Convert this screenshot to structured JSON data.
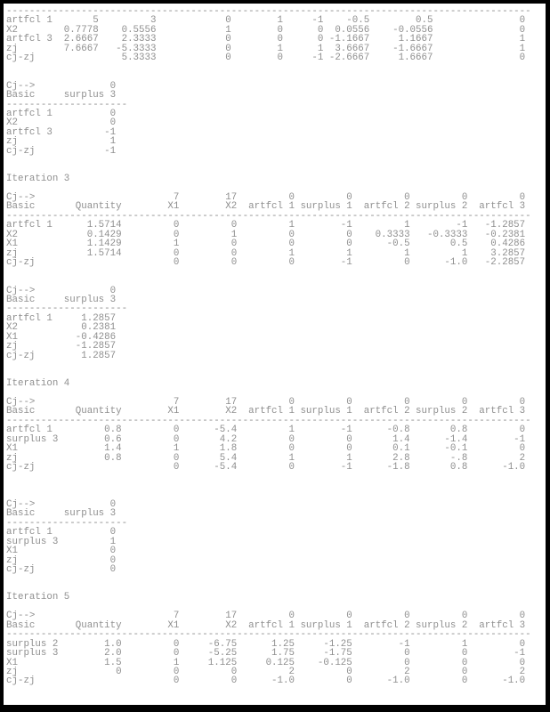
{
  "page": {
    "background": "#ffffff",
    "frame_color": "#000000",
    "text_color": "#8f8f8f"
  },
  "header": {
    "cj_label": "Cj-->",
    "basic_label": "Basic",
    "quantity_label": "Quantity",
    "cj_values": [
      "7",
      "17",
      "0",
      "0",
      "0",
      "0",
      "0"
    ],
    "columns": [
      "X1",
      "X2",
      "artfcl 1",
      "surplus 1",
      "artfcl 2",
      "surplus 2",
      "artfcl 3"
    ],
    "sub_cj_value": "0",
    "sub_column": "surplus 3"
  },
  "dash": {
    "char": "-",
    "main_count": 91,
    "sub_count": 21
  },
  "blocks": [
    {
      "type": "partial_main",
      "name": "tableau-continuation",
      "gap_after": 2,
      "rows": [
        {
          "label": "artfcl 1",
          "values": [
            "5",
            "3",
            "0",
            "1",
            "-1",
            "-0.5",
            "0.5",
            "0"
          ]
        },
        {
          "label": "X2",
          "values": [
            "0.7778",
            "0.5556",
            "1",
            "0",
            "0",
            "0.0556",
            "-0.0556",
            "0"
          ]
        },
        {
          "label": "artfcl 3",
          "values": [
            "2.6667",
            "2.3333",
            "0",
            "0",
            "0",
            "-1.1667",
            "1.1667",
            "1"
          ]
        },
        {
          "label": "zj",
          "values": [
            "7.6667",
            "-5.3333",
            "0",
            "1",
            "1",
            "3.6667",
            "-1.6667",
            "1"
          ]
        },
        {
          "label": "cj-zj",
          "values": [
            "",
            "5.3333",
            "0",
            "0",
            "-1",
            "-2.6667",
            "1.6667",
            "0"
          ]
        }
      ]
    },
    {
      "type": "sub",
      "name": "surplus3-column-table",
      "gap_after": 2,
      "rows": [
        {
          "label": "artfcl 1",
          "value": "0"
        },
        {
          "label": "X2",
          "value": "0"
        },
        {
          "label": "artfcl 3",
          "value": "-1"
        },
        {
          "label": "zj",
          "value": "1"
        },
        {
          "label": "cj-zj",
          "value": "-1"
        }
      ]
    },
    {
      "type": "heading",
      "name": "iteration-heading",
      "text": "Iteration 3",
      "gap_after": 1
    },
    {
      "type": "main",
      "name": "simplex-tableau",
      "gap_after": 2,
      "rows": [
        {
          "label": "artfcl 1",
          "values": [
            "1.5714",
            "0",
            "0",
            "1",
            "-1",
            "1",
            "-1",
            "-1.2857"
          ]
        },
        {
          "label": "X2",
          "values": [
            "0.1429",
            "0",
            "1",
            "0",
            "0",
            "0.3333",
            "-0.3333",
            "-0.2381"
          ]
        },
        {
          "label": "X1",
          "values": [
            "1.1429",
            "1",
            "0",
            "0",
            "0",
            "-0.5",
            "0.5",
            "0.4286"
          ]
        },
        {
          "label": "zj",
          "values": [
            "1.5714",
            "0",
            "0",
            "1",
            "1",
            "1",
            "1",
            "3.2857"
          ]
        },
        {
          "label": "cj-zj",
          "values": [
            "",
            "0",
            "0",
            "0",
            "-1",
            "0",
            "-1.0",
            "-2.2857"
          ]
        }
      ]
    },
    {
      "type": "sub",
      "name": "surplus3-column-table",
      "gap_after": 2,
      "rows": [
        {
          "label": "artfcl 1",
          "value": "1.2857"
        },
        {
          "label": "X2",
          "value": "0.2381"
        },
        {
          "label": "X1",
          "value": "-0.4286"
        },
        {
          "label": "zj",
          "value": "-1.2857"
        },
        {
          "label": "cj-zj",
          "value": "1.2857"
        }
      ]
    },
    {
      "type": "heading",
      "name": "iteration-heading",
      "text": "Iteration 4",
      "gap_after": 1
    },
    {
      "type": "main",
      "name": "simplex-tableau",
      "gap_after": 3,
      "rows": [
        {
          "label": "artfcl 1",
          "values": [
            "0.8",
            "0",
            "-5.4",
            "1",
            "-1",
            "-0.8",
            "0.8",
            "0"
          ]
        },
        {
          "label": "surplus 3",
          "values": [
            "0.6",
            "0",
            "4.2",
            "0",
            "0",
            "1.4",
            "-1.4",
            "-1"
          ]
        },
        {
          "label": "X1",
          "values": [
            "1.4",
            "1",
            "1.8",
            "0",
            "0",
            "0.1",
            "-0.1",
            "0"
          ]
        },
        {
          "label": "zj",
          "values": [
            "0.8",
            "0",
            "5.4",
            "1",
            "1",
            "2.8",
            "-.8",
            "2"
          ]
        },
        {
          "label": "cj-zj",
          "values": [
            "",
            "0",
            "-5.4",
            "0",
            "-1",
            "-1.8",
            "0.8",
            "-1.0"
          ]
        }
      ]
    },
    {
      "type": "sub",
      "name": "surplus3-column-table",
      "gap_after": 2,
      "rows": [
        {
          "label": "artfcl 1",
          "value": "0"
        },
        {
          "label": "surplus 3",
          "value": "1"
        },
        {
          "label": "X1",
          "value": "0"
        },
        {
          "label": "zj",
          "value": "0"
        },
        {
          "label": "cj-zj",
          "value": "0"
        }
      ]
    },
    {
      "type": "heading",
      "name": "iteration-heading",
      "text": "Iteration 5",
      "gap_after": 1
    },
    {
      "type": "main",
      "name": "simplex-tableau",
      "gap_after": 0,
      "rows": [
        {
          "label": "surplus 2",
          "values": [
            "1.0",
            "0",
            "-6.75",
            "1.25",
            "-1.25",
            "-1",
            "1",
            "0"
          ]
        },
        {
          "label": "surplus 3",
          "values": [
            "2.0",
            "0",
            "-5.25",
            "1.75",
            "-1.75",
            "0",
            "0",
            "-1"
          ]
        },
        {
          "label": "X1",
          "values": [
            "1.5",
            "1",
            "1.125",
            "0.125",
            "-0.125",
            "0",
            "0",
            "0"
          ]
        },
        {
          "label": "zj",
          "values": [
            "0",
            "0",
            "0",
            "2",
            "0",
            "2",
            "0",
            "2"
          ]
        },
        {
          "label": "cj-zj",
          "values": [
            "",
            "0",
            "0",
            "-1.0",
            "0",
            "-1.0",
            "0",
            "-1.0"
          ]
        }
      ]
    }
  ]
}
